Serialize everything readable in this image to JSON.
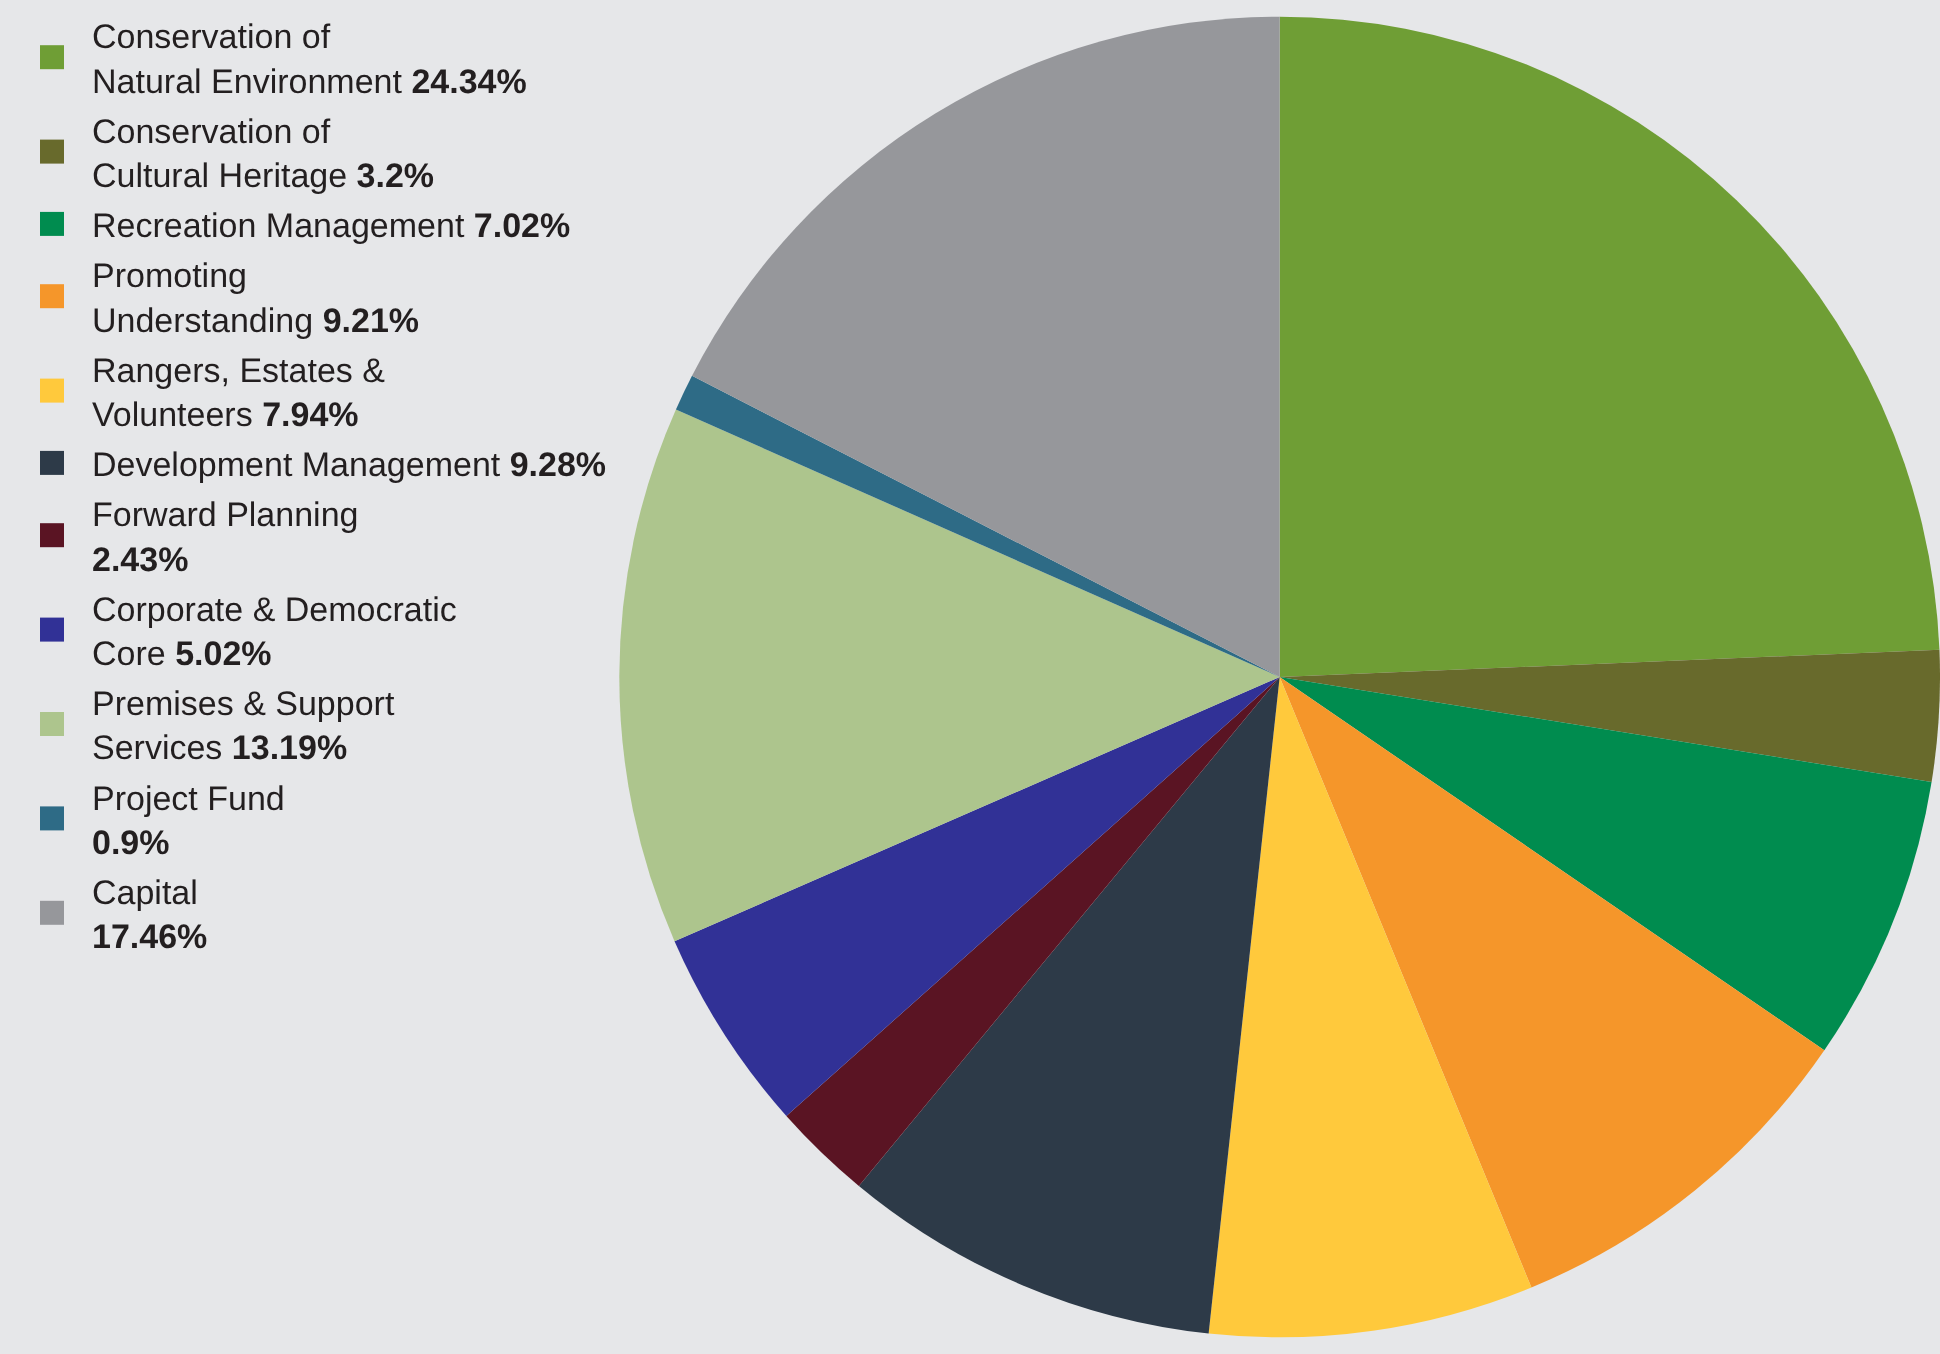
{
  "chart_data": {
    "type": "pie",
    "categories": [
      "Conservation of Natural Environment",
      "Conservation of Cultural Heritage",
      "Recreation Management",
      "Promoting Understanding",
      "Rangers, Estates & Volunteers",
      "Development Management",
      "Forward Planning",
      "Corporate & Democratic Core",
      "Premises & Support Services",
      "Project Fund",
      "Capital"
    ],
    "values": [
      24.34,
      3.2,
      7.02,
      9.21,
      7.94,
      9.28,
      2.43,
      5.02,
      13.19,
      0.9,
      17.46
    ],
    "value_labels": [
      "24.34%",
      "3.2%",
      "7.02%",
      "9.21%",
      "7.94%",
      "9.28%",
      "2.43%",
      "5.02%",
      "13.19%",
      "0.9%",
      "17.46%"
    ],
    "colors": [
      "#6f9e35",
      "#686a2c",
      "#008c4f",
      "#f5962a",
      "#ffc93c",
      "#2d3a48",
      "#5a1423",
      "#313196",
      "#adc58d",
      "#2e6b86",
      "#96979b"
    ],
    "legend": "left"
  }
}
